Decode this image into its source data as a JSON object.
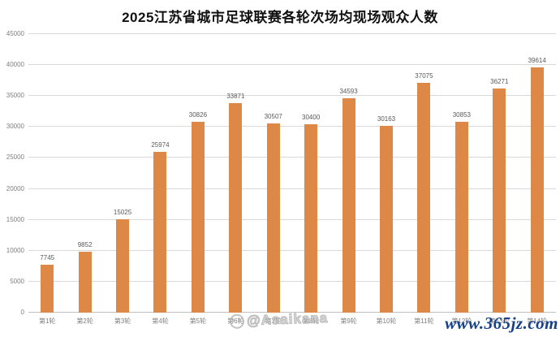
{
  "title": "2025江苏省城市足球联赛各轮次场均现场观众人数",
  "chart_data": {
    "type": "bar",
    "title": "2025江苏省城市足球联赛各轮次场均现场观众人数",
    "categories": [
      "第1轮",
      "第2轮",
      "第3轮",
      "第4轮",
      "第5轮",
      "第6轮",
      "第7轮",
      "第8轮",
      "第9轮",
      "第10轮",
      "第11轮",
      "第12轮",
      "第13轮",
      "第14轮"
    ],
    "values": [
      7745,
      9852,
      15025,
      25974,
      30826,
      33871,
      30507,
      30400,
      34593,
      30163,
      37075,
      30853,
      36271,
      39614
    ],
    "xlabel": "",
    "ylabel": "",
    "ylim": [
      0,
      45000
    ],
    "yticks": [
      0,
      5000,
      10000,
      15000,
      20000,
      25000,
      30000,
      35000,
      40000,
      45000
    ],
    "grid": true,
    "legend": false,
    "bar_color": "#de8848",
    "value_label_color": "#595959",
    "axis_text_color": "#7f7f7f",
    "gridline_color": "#d9d9d9"
  },
  "watermarks": {
    "stamp": "@Asaikana",
    "site": "www.365jz.com",
    "site_color": "#16418c"
  }
}
